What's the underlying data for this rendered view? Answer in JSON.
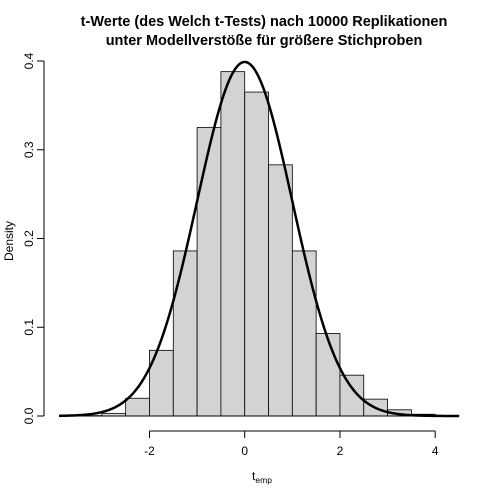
{
  "chart_data": {
    "type": "bar",
    "title_line1": "t-Werte (des Welch t-Tests) nach 10000 Replikationen",
    "title_line2": "unter Modellverstöße für größere Stichproben",
    "xlabel_main": "t",
    "xlabel_sub": "emp",
    "ylabel": "Density",
    "xlim": [
      -3.9,
      4.5
    ],
    "ylim": [
      0,
      0.4
    ],
    "x_ticks": [
      -2,
      0,
      2,
      4
    ],
    "y_ticks": [
      0.0,
      0.1,
      0.2,
      0.3,
      0.4
    ],
    "x_tick_labels": [
      "-2",
      "0",
      "2",
      "4"
    ],
    "y_tick_labels": [
      "0.0",
      "0.1",
      "0.2",
      "0.3",
      "0.4"
    ],
    "bin_edges": [
      -3.5,
      -3.0,
      -2.5,
      -2.0,
      -1.5,
      -1.0,
      -0.5,
      0.0,
      0.5,
      1.0,
      1.5,
      2.0,
      2.5,
      3.0,
      3.5,
      4.0,
      4.5
    ],
    "densities": [
      0.0004,
      0.003,
      0.02,
      0.074,
      0.186,
      0.325,
      0.388,
      0.365,
      0.283,
      0.186,
      0.093,
      0.046,
      0.019,
      0.007,
      0.002,
      0.0004
    ],
    "bar_fill": "#d3d3d3",
    "curve": {
      "type": "normal-density",
      "mean": 0,
      "sd": 1,
      "color": "#000000"
    }
  }
}
